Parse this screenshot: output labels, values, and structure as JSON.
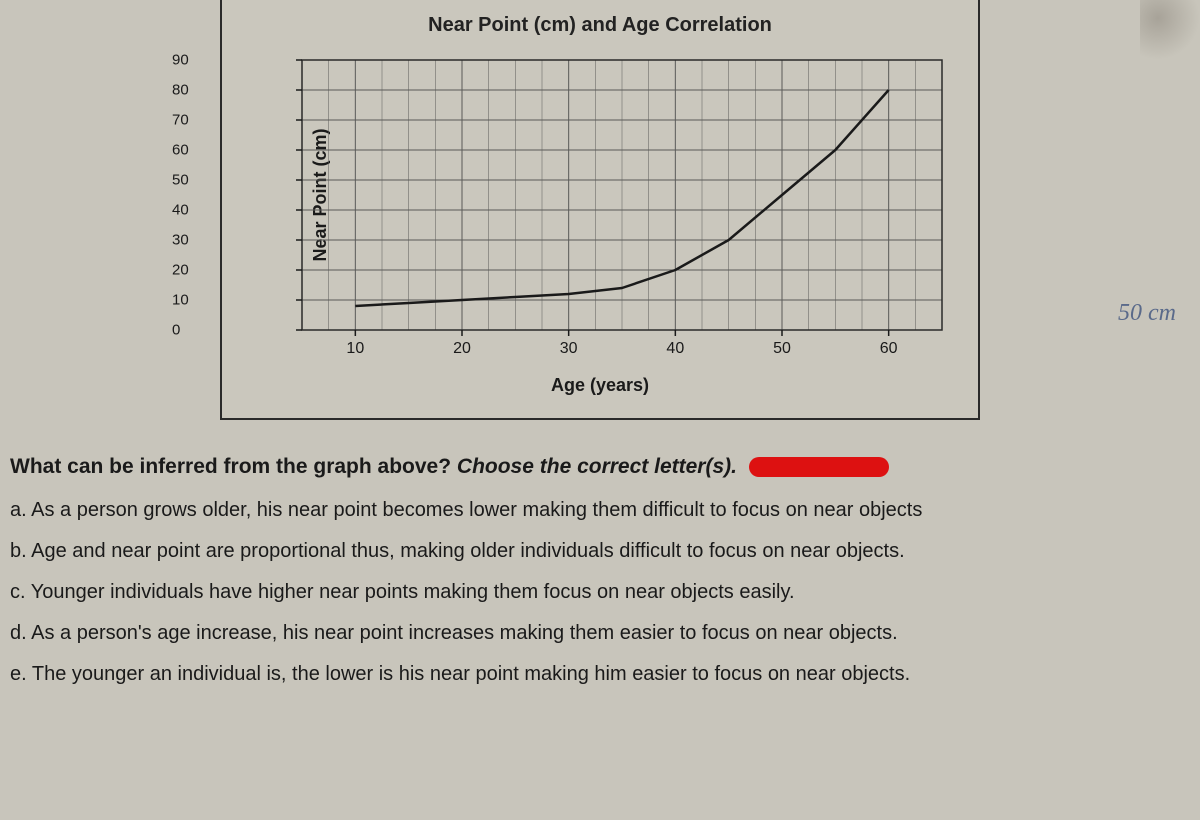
{
  "chart": {
    "type": "line",
    "title": "Near Point (cm) and Age Correlation",
    "xlabel": "Age (years)",
    "ylabel": "Near Point (cm)",
    "xlim": [
      5,
      65
    ],
    "ylim": [
      0,
      90
    ],
    "xticks": [
      10,
      20,
      30,
      40,
      50,
      60
    ],
    "yticks": [
      0,
      10,
      20,
      30,
      40,
      50,
      60,
      70,
      80,
      90
    ],
    "minor_x_step": 2.5,
    "minor_y_step": 10,
    "grid_color": "#5a5a58",
    "grid_width": 1,
    "minor_grid_width": 0.5,
    "line_color": "#1a1a1a",
    "line_width": 2.5,
    "background_color": "#cac7bd",
    "title_fontsize": 20,
    "label_fontsize": 18,
    "tick_fontsize": 15,
    "data": [
      {
        "x": 10,
        "y": 8
      },
      {
        "x": 15,
        "y": 9
      },
      {
        "x": 20,
        "y": 10
      },
      {
        "x": 25,
        "y": 11
      },
      {
        "x": 30,
        "y": 12
      },
      {
        "x": 35,
        "y": 14
      },
      {
        "x": 40,
        "y": 20
      },
      {
        "x": 45,
        "y": 30
      },
      {
        "x": 50,
        "y": 45
      },
      {
        "x": 55,
        "y": 60
      },
      {
        "x": 60,
        "y": 80
      }
    ]
  },
  "handwriting": "50 cm",
  "question": {
    "stem": "What can be inferred from the graph above? ",
    "stem_italic": "Choose the correct letter(s).",
    "options": {
      "a": "a. As a person grows older, his near point becomes lower making them difficult to focus on near objects",
      "b": "b. Age and near point are proportional thus, making older individuals difficult to focus on near objects.",
      "c": "c. Younger individuals have higher near points making them focus on near objects easily.",
      "d": "d. As a person's age increase, his near point increases making them easier to focus on near objects.",
      "e": "e. The younger an individual is, the lower is his near point making him easier to focus on near objects."
    }
  },
  "colors": {
    "page_bg": "#c8c5bb",
    "text": "#1a1a1a",
    "redaction": "#d11"
  }
}
